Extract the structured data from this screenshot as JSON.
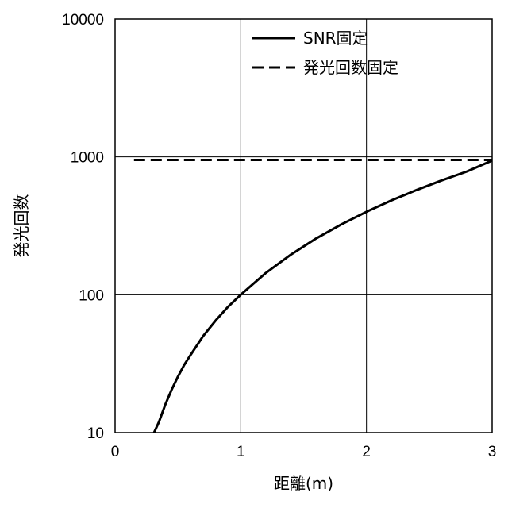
{
  "chart_data": {
    "type": "line",
    "xlabel": "距離(m)",
    "ylabel": "発光回数",
    "xlim": [
      0,
      3
    ],
    "ylim": [
      10,
      10000
    ],
    "yscale": "log",
    "xticks": [
      "0",
      "1",
      "2",
      "3"
    ],
    "yticks": [
      "10",
      "100",
      "1000",
      "10000"
    ],
    "grid": true,
    "legend_position": "top-right",
    "series": [
      {
        "name": "SNR固定",
        "style": "solid",
        "color": "#000000",
        "x": [
          0.31,
          0.35,
          0.4,
          0.45,
          0.5,
          0.55,
          0.6,
          0.7,
          0.8,
          0.9,
          1.0,
          1.2,
          1.4,
          1.6,
          1.8,
          2.0,
          2.2,
          2.4,
          2.6,
          2.8,
          3.0
        ],
        "y": [
          10,
          12,
          16,
          20.5,
          25.5,
          31,
          36.5,
          50,
          65,
          82,
          100,
          144,
          196,
          256,
          324,
          400,
          484,
          576,
          676,
          784,
          940
        ]
      },
      {
        "name": "発光回数固定",
        "style": "dashed",
        "color": "#000000",
        "x": [
          0.15,
          3.0
        ],
        "y": [
          950,
          950
        ]
      }
    ]
  }
}
